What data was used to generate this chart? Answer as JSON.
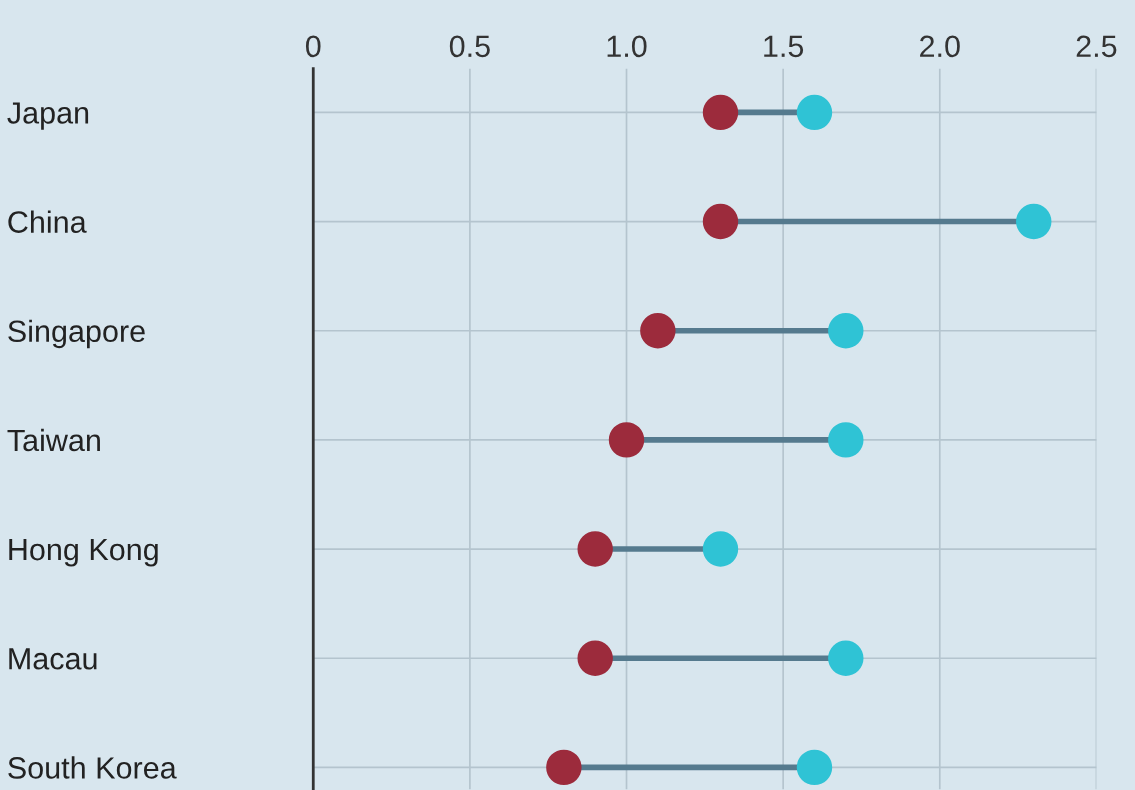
{
  "chart_data": {
    "type": "scatter",
    "orientation": "horizontal",
    "categories": [
      "Japan",
      "China",
      "Singapore",
      "Taiwan",
      "Hong Kong",
      "Macau",
      "South Korea"
    ],
    "series": [
      {
        "color": "#9c2b3c",
        "values": [
          1.3,
          1.3,
          1.1,
          1.0,
          0.9,
          0.9,
          0.8
        ]
      },
      {
        "color": "#2fc3d5",
        "values": [
          1.6,
          2.3,
          1.7,
          1.7,
          1.3,
          1.7,
          1.6
        ]
      }
    ],
    "xlim": [
      0,
      2.5
    ],
    "xticks": [
      0,
      0.5,
      {
        "value": 1.0,
        "label": "1.0"
      },
      1.5,
      {
        "value": 2.0,
        "label": "2.0"
      },
      2.5
    ],
    "grid": true,
    "marker": "circle"
  }
}
